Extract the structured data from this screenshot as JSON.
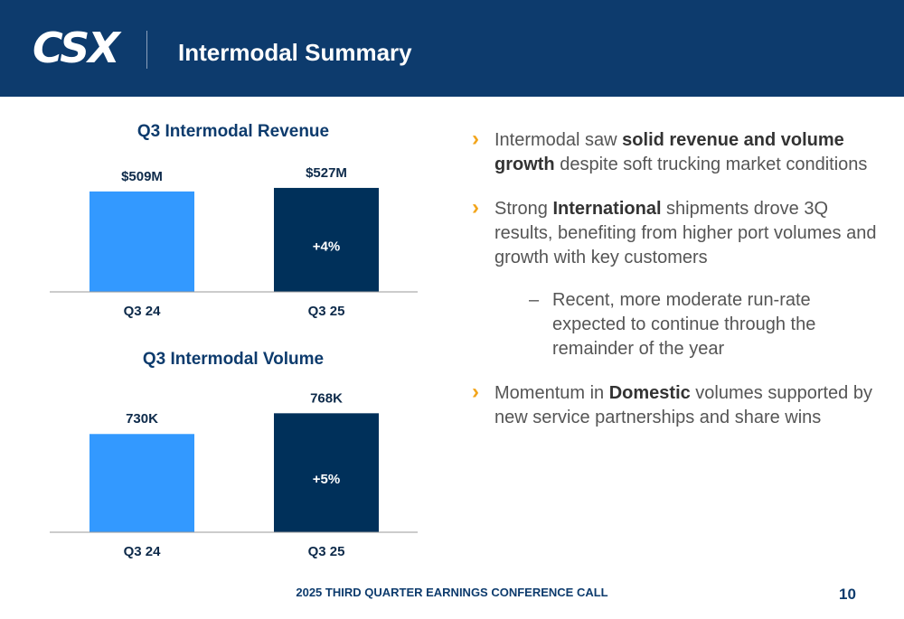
{
  "header": {
    "logo": "CSX",
    "title": "Intermodal Summary"
  },
  "chart_data": [
    {
      "type": "bar",
      "title": "Q3 Intermodal Revenue",
      "categories": [
        "Q3 24",
        "Q3 25"
      ],
      "values": [
        509,
        527
      ],
      "value_labels": [
        "$509M",
        "$527M"
      ],
      "colors": [
        "#3399ff",
        "#00305a"
      ],
      "annotation": "+4%",
      "ylim": [
        0,
        600
      ]
    },
    {
      "type": "bar",
      "title": "Q3 Intermodal Volume",
      "categories": [
        "Q3 24",
        "Q3 25"
      ],
      "values": [
        730,
        768
      ],
      "value_labels": [
        "730K",
        "768K"
      ],
      "colors": [
        "#3399ff",
        "#00305a"
      ],
      "annotation": "+5%",
      "ylim": [
        550,
        800
      ]
    }
  ],
  "bullets": [
    {
      "parts": [
        {
          "text": "Intermodal saw ",
          "bold": false
        },
        {
          "text": "solid revenue and volume growth",
          "bold": true
        },
        {
          "text": " despite soft trucking market conditions",
          "bold": false
        }
      ]
    },
    {
      "parts": [
        {
          "text": "Strong ",
          "bold": false
        },
        {
          "text": "International",
          "bold": true
        },
        {
          "text": " shipments drove 3Q results, benefiting from higher port volumes and growth with key customers",
          "bold": false
        }
      ],
      "sub": [
        "Recent, more moderate run-rate expected to continue through the remainder of the year"
      ]
    },
    {
      "parts": [
        {
          "text": "Momentum in ",
          "bold": false
        },
        {
          "text": "Domestic",
          "bold": true
        },
        {
          "text": " volumes supported by new service partnerships and share wins",
          "bold": false
        }
      ]
    }
  ],
  "footer": {
    "text": "2025 THIRD QUARTER EARNINGS CONFERENCE CALL",
    "page": 10
  }
}
